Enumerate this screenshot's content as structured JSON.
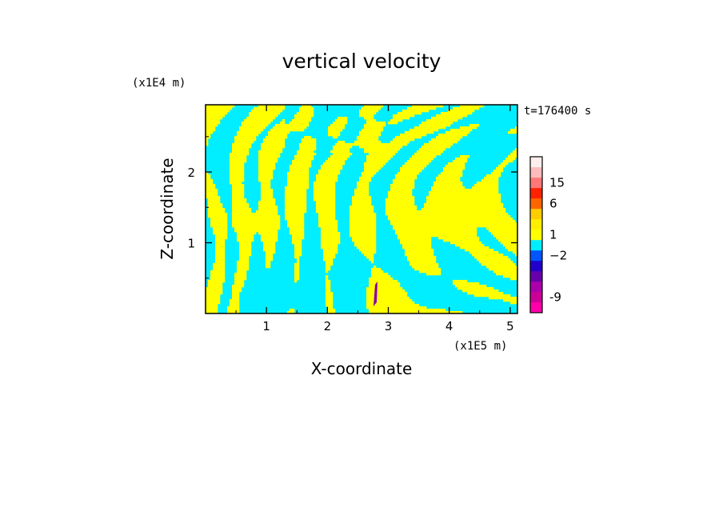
{
  "chart_data": {
    "type": "heatmap",
    "title": "vertical velocity",
    "xlabel": "X-coordinate",
    "ylabel": "Z-coordinate",
    "x_unit": "(x1E5 m)",
    "y_unit": "(x1E4 m)",
    "time_label": "t=176400 s",
    "xlim": [
      0,
      5.12
    ],
    "ylim": [
      0,
      2.95
    ],
    "x_ticks": [
      1,
      2,
      3,
      4,
      5
    ],
    "y_ticks": [
      1,
      2
    ],
    "colorbar": {
      "levels": [
        {
          "color": "#ff00aa"
        },
        {
          "color": "#cc0099"
        },
        {
          "color": "#aa00aa"
        },
        {
          "color": "#6600aa"
        },
        {
          "color": "#2200cc"
        },
        {
          "color": "#0055ff"
        },
        {
          "color": "#00eeff"
        },
        {
          "color": "#ffff00"
        },
        {
          "color": "#ffee00"
        },
        {
          "color": "#ffcc00"
        },
        {
          "color": "#ff6600"
        },
        {
          "color": "#ff2200"
        },
        {
          "color": "#ff7777"
        },
        {
          "color": "#ffbbbb"
        },
        {
          "color": "#ffeeee"
        }
      ],
      "labels": [
        {
          "text": "-9",
          "level": 1.5
        },
        {
          "text": "−2",
          "level": 5.5
        },
        {
          "text": "1",
          "level": 7.5
        },
        {
          "text": "6",
          "level": 10.5
        },
        {
          "text": "15",
          "level": 12.5
        }
      ]
    },
    "field_colors": {
      "positive": "#ffff00",
      "negative": "#00eeff",
      "accent": "#8800aa"
    }
  }
}
